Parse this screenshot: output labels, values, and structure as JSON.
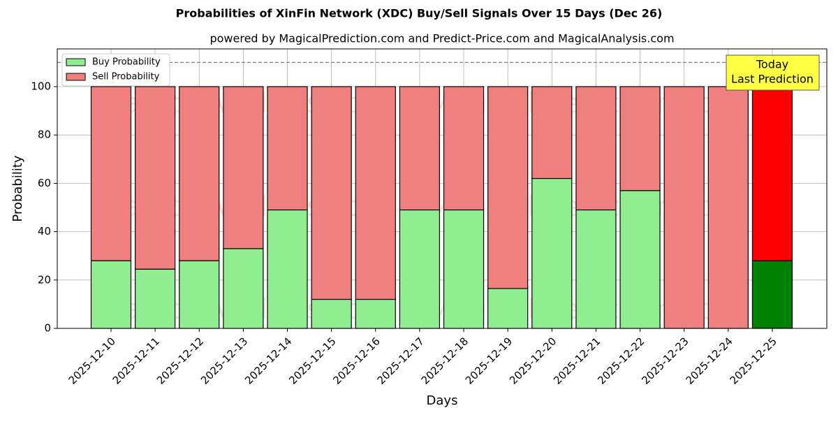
{
  "chart_data": {
    "type": "stacked_bar",
    "title": "Probabilities of XinFin Network (XDC) Buy/Sell Signals Over 15 Days (Dec 26)",
    "subtitle": "powered by MagicalPrediction.com and Predict-Price.com and MagicalAnalysis.com",
    "x_label": "Days",
    "y_label": "Probability",
    "categories": [
      "2025-12-10",
      "2025-12-11",
      "2025-12-12",
      "2025-12-13",
      "2025-12-14",
      "2025-12-15",
      "2025-12-16",
      "2025-12-17",
      "2025-12-18",
      "2025-12-19",
      "2025-12-20",
      "2025-12-21",
      "2025-12-22",
      "2025-12-23",
      "2025-12-24",
      "2025-12-25"
    ],
    "series": [
      {
        "name": "Buy Probability",
        "color": "#90ee90",
        "last_color": "#008000",
        "values": [
          28,
          24.5,
          28,
          33,
          49,
          12,
          12,
          49,
          49,
          16.5,
          62,
          49,
          57,
          0,
          0,
          28
        ]
      },
      {
        "name": "Sell Probability",
        "color": "#f08080",
        "last_color": "#ff0000",
        "values": [
          72,
          75.5,
          72,
          67,
          51,
          88,
          88,
          51,
          51,
          83.5,
          38,
          51,
          43,
          100,
          100,
          72
        ]
      }
    ],
    "ylim": [
      0,
      115.6
    ],
    "yticks": [
      0,
      20,
      40,
      60,
      80,
      100
    ],
    "grid": true,
    "legend": "upper left",
    "reference_line": 110,
    "annotation": [
      "Today",
      "Last Prediction"
    ],
    "watermarks": [
      "MagicalAnalysis.com",
      "MagicalPrediction.com"
    ]
  }
}
